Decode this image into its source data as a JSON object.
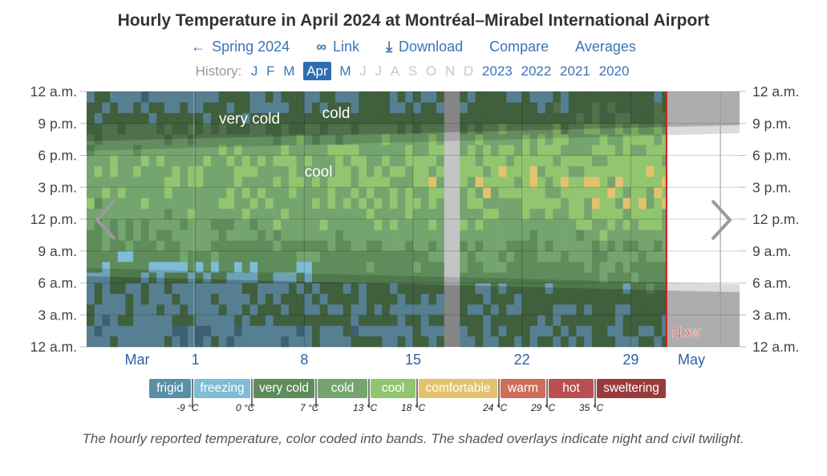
{
  "title": "Hourly Temperature in April 2024 at Montréal–Mirabel International Airport",
  "nav": [
    {
      "icon": "arrow-left-icon",
      "glyph": "←",
      "label": "Spring 2024"
    },
    {
      "icon": "link-icon",
      "glyph": "∞",
      "label": "Link"
    },
    {
      "icon": "download-icon",
      "glyph": "⤓",
      "label": "Download"
    },
    {
      "icon": "",
      "glyph": "",
      "label": "Compare"
    },
    {
      "icon": "",
      "glyph": "",
      "label": "Averages"
    }
  ],
  "history": {
    "label": "History:",
    "months": [
      {
        "label": "J",
        "enabled": true,
        "selected": false
      },
      {
        "label": "F",
        "enabled": true,
        "selected": false
      },
      {
        "label": "M",
        "enabled": true,
        "selected": false
      },
      {
        "label": "Apr",
        "enabled": true,
        "selected": true
      },
      {
        "label": "M",
        "enabled": true,
        "selected": false
      },
      {
        "label": "J",
        "enabled": false,
        "selected": false
      },
      {
        "label": "J",
        "enabled": false,
        "selected": false
      },
      {
        "label": "A",
        "enabled": false,
        "selected": false
      },
      {
        "label": "S",
        "enabled": false,
        "selected": false
      },
      {
        "label": "O",
        "enabled": false,
        "selected": false
      },
      {
        "label": "N",
        "enabled": false,
        "selected": false
      },
      {
        "label": "D",
        "enabled": false,
        "selected": false
      }
    ],
    "years": [
      "2023",
      "2022",
      "2021",
      "2020"
    ]
  },
  "colors": {
    "frigid": "#5b8fa8",
    "freezing": "#7fbcd6",
    "very_cold": "#5e8c5a",
    "cold": "#75a56f",
    "cool": "#92c56f",
    "comfortable": "#e3c26e",
    "warm": "#cd6f5b",
    "hot": "#b94f52",
    "sweltering": "#9b3a3a",
    "now_line": "#cc2020"
  },
  "chart_data": {
    "type": "heatmap",
    "y_tick_labels": [
      "12 a.m.",
      "9 p.m.",
      "6 p.m.",
      "3 p.m.",
      "12 p.m.",
      "9 a.m.",
      "6 a.m.",
      "3 a.m.",
      "12 a.m."
    ],
    "x_tick_labels": [
      {
        "label": "Mar",
        "day": -0.5
      },
      {
        "label": "1",
        "day": 0
      },
      {
        "label": "8",
        "day": 7
      },
      {
        "label": "15",
        "day": 14
      },
      {
        "label": "22",
        "day": 21
      },
      {
        "label": "29",
        "day": 28
      },
      {
        "label": "May",
        "day": 32.5
      }
    ],
    "x_range_days": [
      -7,
      35
    ],
    "band_labels": [
      "very cold",
      "cold",
      "cool"
    ],
    "now_label": "Now",
    "now_day": 30.3,
    "missing_day": 16,
    "thresholds_c": [
      -9,
      0,
      7,
      13,
      18,
      24,
      29,
      35
    ],
    "bands": [
      "frigid",
      "freezing",
      "very cold",
      "cold",
      "cool",
      "comfortable",
      "warm",
      "hot",
      "sweltering"
    ]
  },
  "legend": [
    {
      "key": "frigid",
      "label": "frigid"
    },
    {
      "key": "freezing",
      "label": "freezing"
    },
    {
      "key": "very_cold",
      "label": "very cold"
    },
    {
      "key": "cold",
      "label": "cold"
    },
    {
      "key": "cool",
      "label": "cool"
    },
    {
      "key": "comfortable",
      "label": "comfortable"
    },
    {
      "key": "warm",
      "label": "warm"
    },
    {
      "key": "hot",
      "label": "hot"
    },
    {
      "key": "sweltering",
      "label": "sweltering"
    }
  ],
  "threshold_labels": [
    "-9 °C",
    "0 °C",
    "7 °C",
    "13 °C",
    "18 °C",
    "24 °C",
    "29 °C",
    "35 °C"
  ],
  "caption": "The hourly reported temperature, color coded into bands. The shaded overlays indicate night and civil twilight."
}
